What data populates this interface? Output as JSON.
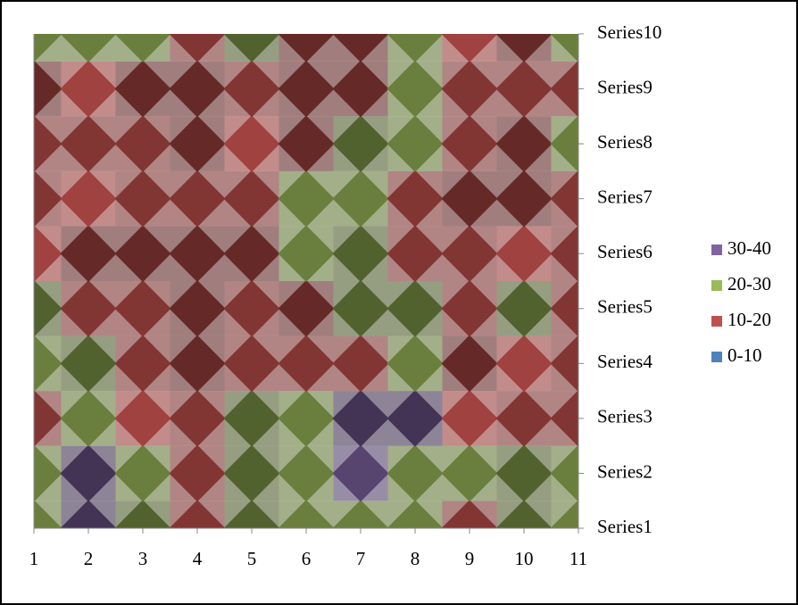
{
  "chart_data": {
    "type": "surface",
    "categories": [
      1,
      2,
      3,
      4,
      5,
      6,
      7,
      8,
      9,
      10,
      11
    ],
    "bands": [
      {
        "name": "30-40",
        "color": "#8064a2",
        "range": [
          30,
          40
        ]
      },
      {
        "name": "20-30",
        "color": "#9bbb59",
        "range": [
          20,
          30
        ]
      },
      {
        "name": "10-20",
        "color": "#c0504d",
        "range": [
          10,
          20
        ]
      },
      {
        "name": "0-10",
        "color": "#4f81bd",
        "range": [
          0,
          10
        ]
      }
    ],
    "series": [
      {
        "name": "Series1",
        "values": [
          25,
          32,
          22,
          15,
          22,
          25,
          25,
          25,
          15,
          22,
          25
        ]
      },
      {
        "name": "Series2",
        "values": [
          25,
          32,
          25,
          15,
          22,
          25,
          35,
          25,
          25,
          22,
          25
        ]
      },
      {
        "name": "Series3",
        "values": [
          15,
          25,
          18,
          15,
          22,
          25,
          32,
          32,
          18,
          15,
          15
        ]
      },
      {
        "name": "Series4",
        "values": [
          25,
          22,
          15,
          12,
          15,
          15,
          15,
          25,
          12,
          18,
          15
        ]
      },
      {
        "name": "Series5",
        "values": [
          22,
          15,
          15,
          12,
          15,
          12,
          22,
          22,
          15,
          22,
          15
        ]
      },
      {
        "name": "Series6",
        "values": [
          18,
          12,
          12,
          12,
          12,
          25,
          22,
          15,
          15,
          18,
          15
        ]
      },
      {
        "name": "Series7",
        "values": [
          15,
          18,
          15,
          15,
          15,
          25,
          25,
          15,
          12,
          12,
          15
        ]
      },
      {
        "name": "Series8",
        "values": [
          15,
          15,
          15,
          12,
          18,
          12,
          22,
          25,
          15,
          12,
          25
        ]
      },
      {
        "name": "Series9",
        "values": [
          12,
          18,
          12,
          12,
          15,
          12,
          12,
          25,
          15,
          15,
          15
        ]
      },
      {
        "name": "Series10",
        "values": [
          25,
          25,
          25,
          15,
          22,
          12,
          12,
          25,
          18,
          12,
          25
        ]
      }
    ]
  }
}
